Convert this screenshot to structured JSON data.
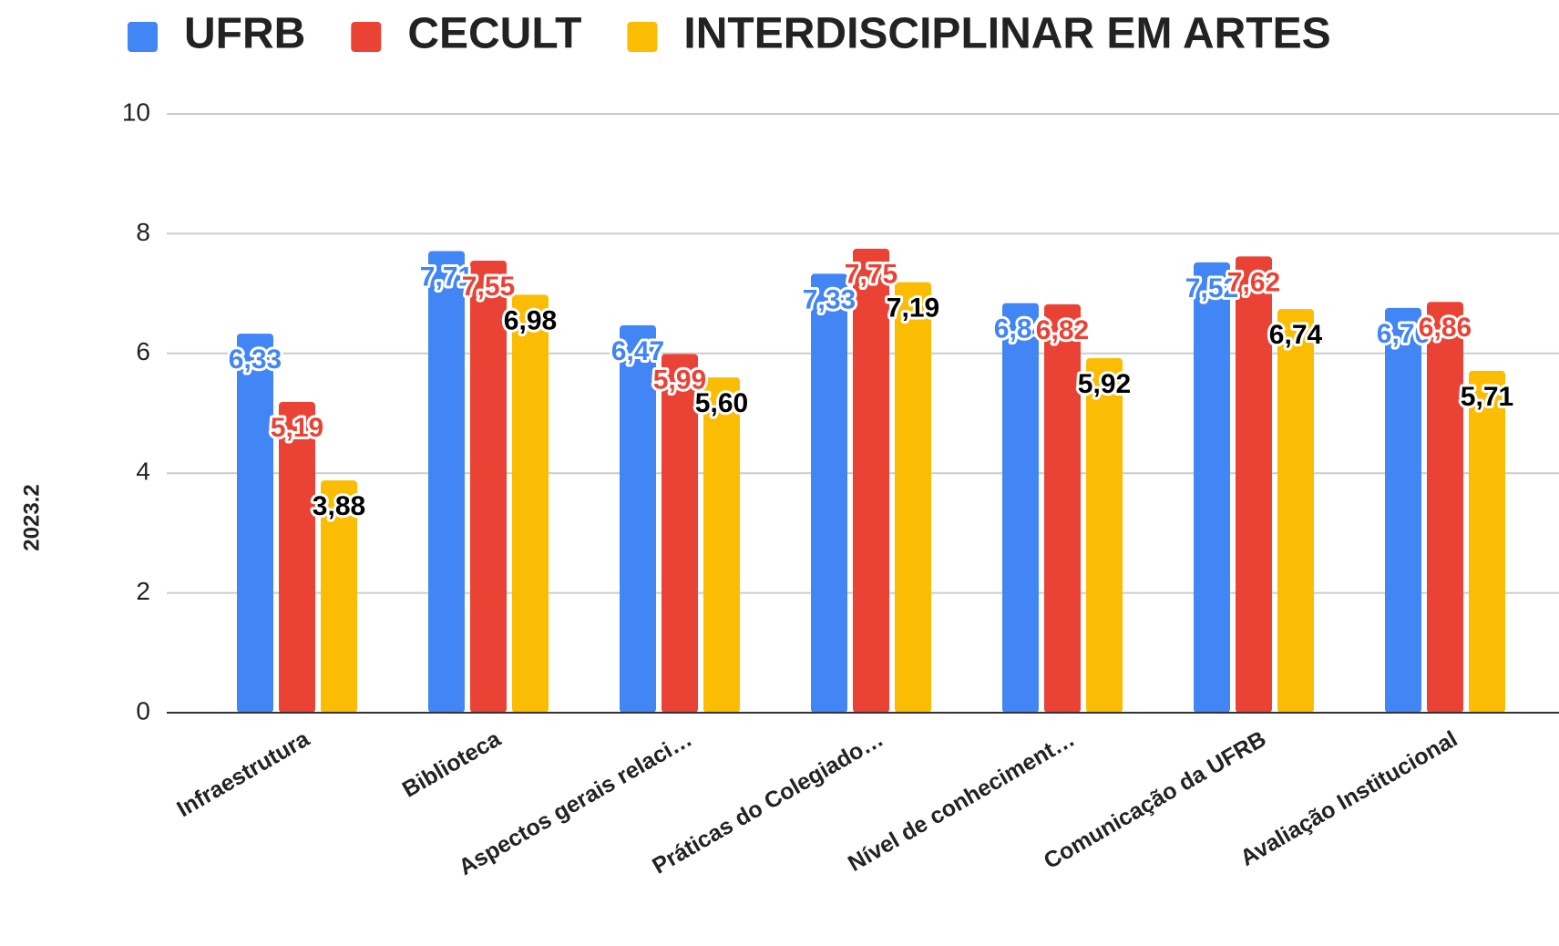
{
  "chart_data": {
    "type": "bar",
    "categories": [
      "Infraestrutura",
      "Biblioteca",
      "Aspectos gerais relaci…",
      "Práticas do Colegiado…",
      "Nível de conheciment…",
      "Comunicação da UFRB",
      "Avaliação Institucional"
    ],
    "series": [
      {
        "name": "UFRB",
        "color": "#4285f4",
        "label_color": "#4285f4",
        "values": [
          6.33,
          7.71,
          6.47,
          7.33,
          6.84,
          7.52,
          6.76
        ],
        "value_labels": [
          "6,33",
          "7,71",
          "6,47",
          "7,33",
          "6,84",
          "7,52",
          "6,76"
        ]
      },
      {
        "name": "CECULT",
        "color": "#ea4335",
        "label_color": "#ea4335",
        "values": [
          5.19,
          7.55,
          5.99,
          7.75,
          6.82,
          7.62,
          6.86
        ],
        "value_labels": [
          "5,19",
          "7,55",
          "5,99",
          "7,75",
          "6,82",
          "7,62",
          "6,86"
        ]
      },
      {
        "name": "INTERDISCIPLINAR EM ARTES",
        "color": "#fbbc04",
        "label_color": "#000000",
        "values": [
          3.88,
          6.98,
          5.6,
          7.19,
          5.92,
          6.74,
          5.71
        ],
        "value_labels": [
          "3,88",
          "6,98",
          "5,60",
          "7,19",
          "5,92",
          "6,74",
          "5,71"
        ]
      }
    ],
    "y_label": "2023.2",
    "ylim": [
      0,
      10
    ],
    "yticks": [
      0,
      2,
      4,
      6,
      8,
      10
    ],
    "grid": true,
    "legend": "top"
  }
}
